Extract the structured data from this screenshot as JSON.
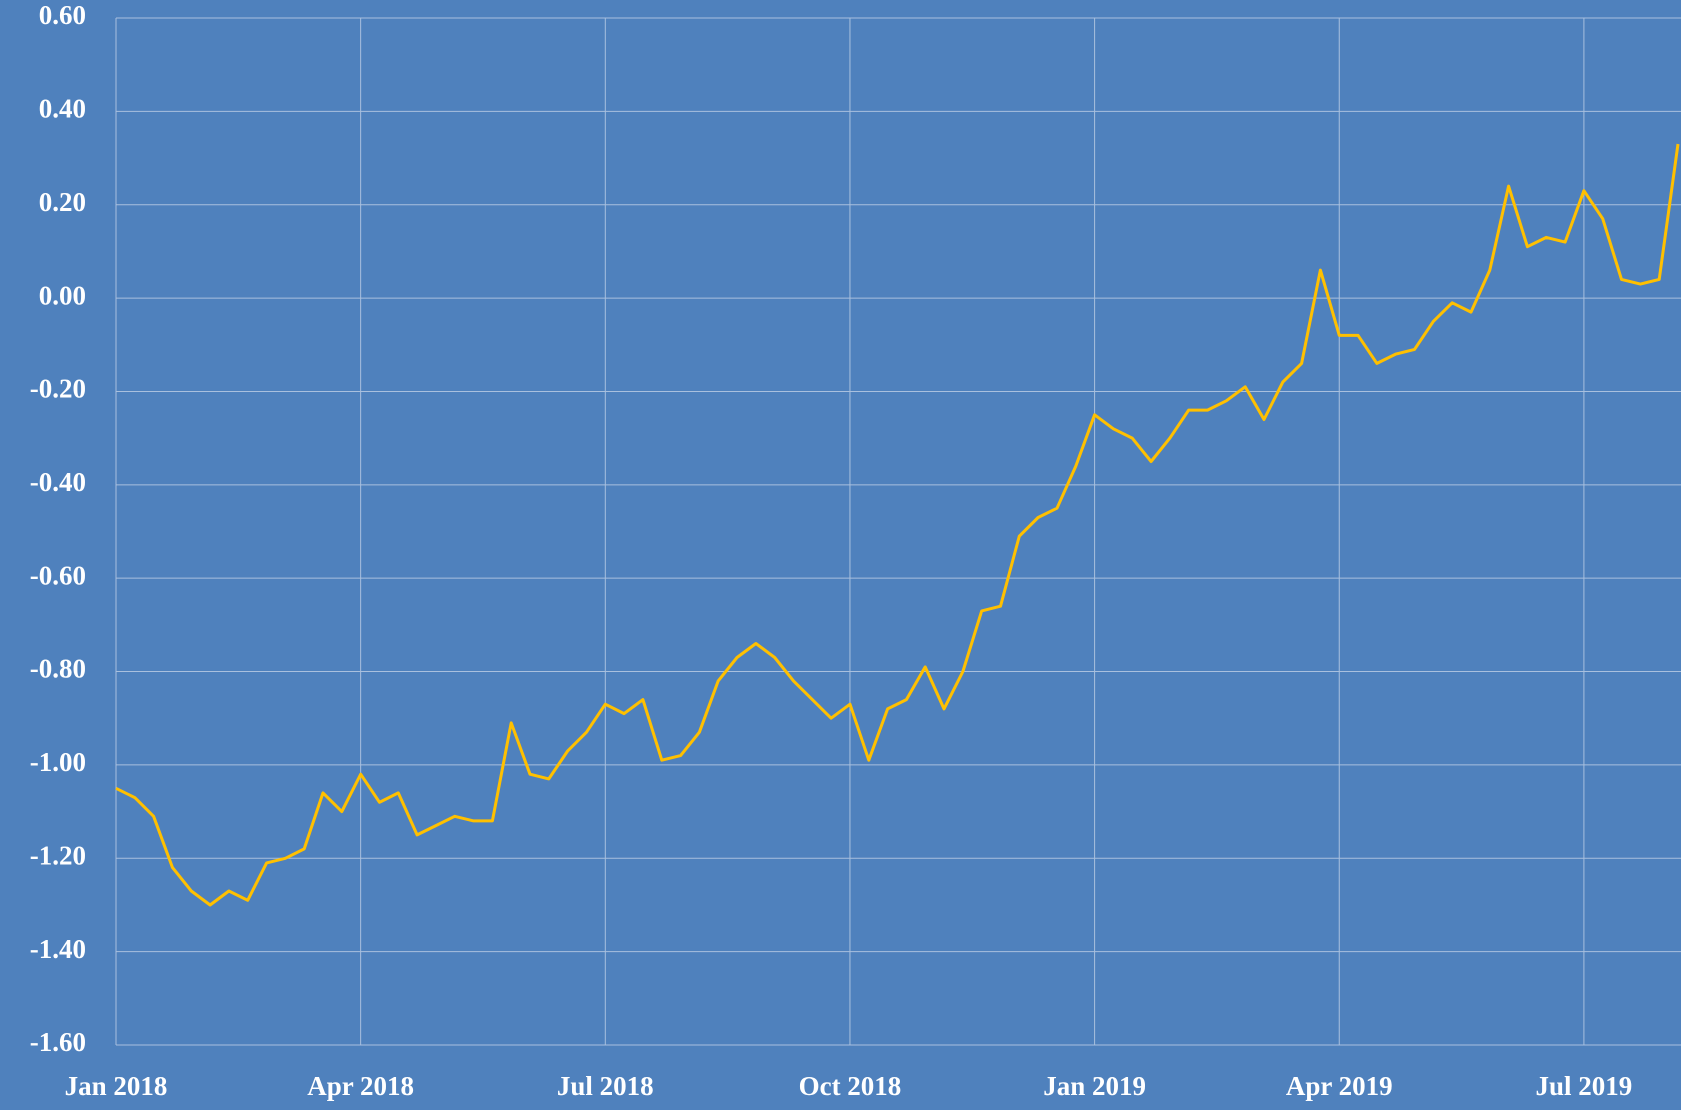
{
  "chart_data": {
    "type": "line",
    "categories": [
      "Jan 2018",
      null,
      null,
      null,
      null,
      null,
      null,
      null,
      null,
      null,
      null,
      null,
      null,
      "Apr 2018",
      null,
      null,
      null,
      null,
      null,
      null,
      null,
      null,
      null,
      null,
      null,
      null,
      "Jul 2018",
      null,
      null,
      null,
      null,
      null,
      null,
      null,
      null,
      null,
      null,
      null,
      null,
      "Oct 2018",
      null,
      null,
      null,
      null,
      null,
      null,
      null,
      null,
      null,
      null,
      null,
      null,
      "Jan 2019",
      null,
      null,
      null,
      null,
      null,
      null,
      null,
      null,
      null,
      null,
      null,
      null,
      "Apr 2019",
      null,
      null,
      null,
      null,
      null,
      null,
      null,
      null,
      null,
      null,
      null,
      null,
      "Jul 2019",
      null,
      null,
      null,
      null,
      null
    ],
    "series": [
      {
        "color": "#ffc000",
        "values": [
          -1.05,
          -1.07,
          -1.11,
          -1.22,
          -1.27,
          -1.3,
          -1.27,
          -1.29,
          -1.21,
          -1.2,
          -1.18,
          -1.06,
          -1.1,
          -1.02,
          -1.08,
          -1.06,
          -1.15,
          -1.13,
          -1.11,
          -1.12,
          -1.12,
          -0.91,
          -1.02,
          -1.03,
          -0.97,
          -0.93,
          -0.87,
          -0.89,
          -0.86,
          -0.99,
          -0.98,
          -0.93,
          -0.82,
          -0.77,
          -0.74,
          -0.77,
          -0.82,
          -0.86,
          -0.9,
          -0.87,
          -0.99,
          -0.88,
          -0.86,
          -0.79,
          -0.88,
          -0.8,
          -0.67,
          -0.66,
          -0.51,
          -0.47,
          -0.45,
          -0.36,
          -0.25,
          -0.28,
          -0.3,
          -0.35,
          -0.3,
          -0.24,
          -0.24,
          -0.22,
          -0.19,
          -0.26,
          -0.18,
          -0.14,
          0.06,
          -0.08,
          -0.08,
          -0.14,
          -0.12,
          -0.11,
          -0.05,
          -0.01,
          -0.03,
          0.06,
          0.24,
          0.11,
          0.13,
          0.12,
          0.23,
          0.17,
          0.04,
          0.03,
          0.04,
          0.33
        ]
      }
    ],
    "ylim": [
      -1.6,
      0.6
    ],
    "yticks": [
      {
        "value": -1.6,
        "label": "-1.60"
      },
      {
        "value": -1.4,
        "label": "-1.40"
      },
      {
        "value": -1.2,
        "label": "-1.20"
      },
      {
        "value": -1.0,
        "label": "-1.00"
      },
      {
        "value": -0.8,
        "label": "-0.80"
      },
      {
        "value": -0.6,
        "label": "-0.60"
      },
      {
        "value": -0.4,
        "label": "-0.40"
      },
      {
        "value": -0.2,
        "label": "-0.20"
      },
      {
        "value": 0,
        "label": "0.00"
      },
      {
        "value": 0.2,
        "label": "0.20"
      },
      {
        "value": 0.4,
        "label": "0.40"
      },
      {
        "value": 0.6,
        "label": "0.60"
      }
    ],
    "grid": true
  }
}
